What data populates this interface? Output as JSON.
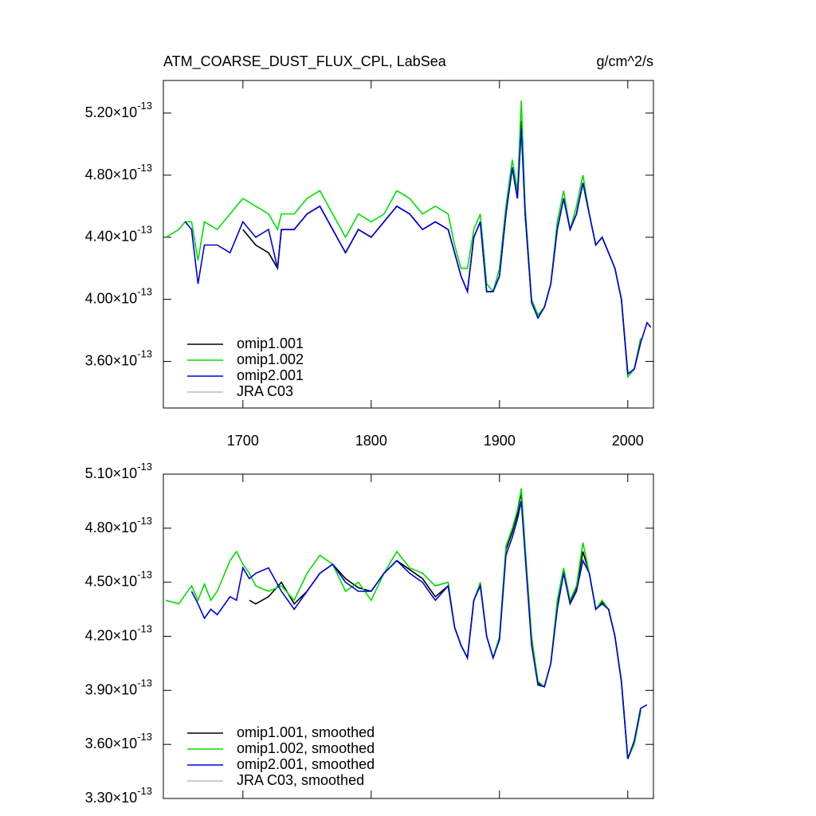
{
  "chart_data": [
    {
      "type": "line",
      "title": "ATM_COARSE_DUST_FLUX_CPL, LabSea",
      "units": "g/cm^2/s",
      "x": [
        1640,
        1650,
        1655,
        1660,
        1665,
        1670,
        1680,
        1690,
        1700,
        1710,
        1720,
        1727,
        1730,
        1740,
        1750,
        1760,
        1770,
        1780,
        1790,
        1800,
        1810,
        1820,
        1830,
        1840,
        1850,
        1860,
        1865,
        1870,
        1875,
        1880,
        1885,
        1890,
        1895,
        1900,
        1905,
        1910,
        1914,
        1917,
        1920,
        1925,
        1930,
        1935,
        1940,
        1945,
        1950,
        1955,
        1960,
        1965,
        1970,
        1975,
        1980,
        1985,
        1990,
        1995,
        2000,
        2005,
        2010,
        2015,
        2018
      ],
      "series": [
        {
          "name": "omip1.001",
          "color": "#000000",
          "values": [
            null,
            null,
            null,
            null,
            null,
            null,
            null,
            null,
            4.45e-13,
            4.35e-13,
            4.3e-13,
            4.2e-13,
            4.45e-13,
            4.45e-13,
            4.55e-13,
            4.6e-13,
            4.45e-13,
            4.3e-13,
            4.45e-13,
            4.4e-13,
            4.5e-13,
            4.6e-13,
            4.55e-13,
            4.45e-13,
            4.5e-13,
            4.45e-13,
            4.3e-13,
            4.15e-13,
            4.05e-13,
            4.4e-13,
            4.5e-13,
            4.05e-13,
            4.05e-13,
            4.15e-13,
            4.55e-13,
            4.85e-13,
            4.65e-13,
            5.15e-13,
            4.55e-13,
            3.98e-13,
            3.88e-13,
            3.95e-13,
            4.1e-13,
            4.45e-13,
            4.65e-13,
            4.45e-13,
            4.55e-13,
            4.75e-13,
            4.55e-13,
            4.35e-13,
            4.4e-13,
            4.3e-13,
            4.2e-13,
            4e-13,
            3.52e-13,
            3.55e-13,
            3.72e-13,
            null,
            null
          ]
        },
        {
          "name": "omip1.002",
          "color": "#00dd00",
          "values": [
            4.4e-13,
            4.45e-13,
            4.5e-13,
            4.5e-13,
            4.25e-13,
            4.5e-13,
            4.45e-13,
            4.55e-13,
            4.65e-13,
            4.6e-13,
            4.55e-13,
            4.45e-13,
            4.55e-13,
            4.55e-13,
            4.65e-13,
            4.7e-13,
            4.55e-13,
            4.4e-13,
            4.55e-13,
            4.5e-13,
            4.55e-13,
            4.7e-13,
            4.65e-13,
            4.55e-13,
            4.6e-13,
            4.55e-13,
            4.35e-13,
            4.2e-13,
            4.2e-13,
            4.45e-13,
            4.55e-13,
            4.1e-13,
            4.05e-13,
            4.2e-13,
            4.6e-13,
            4.9e-13,
            4.7e-13,
            5.28e-13,
            4.6e-13,
            4e-13,
            3.9e-13,
            3.95e-13,
            4.1e-13,
            4.5e-13,
            4.7e-13,
            4.45e-13,
            4.6e-13,
            4.8e-13,
            4.55e-13,
            4.35e-13,
            4.4e-13,
            4.3e-13,
            4.2e-13,
            4e-13,
            3.5e-13,
            3.55e-13,
            3.75e-13,
            null,
            null
          ]
        },
        {
          "name": "omip2.001",
          "color": "#0000dd",
          "values": [
            null,
            null,
            4.5e-13,
            4.45e-13,
            4.1e-13,
            4.35e-13,
            4.35e-13,
            4.3e-13,
            4.5e-13,
            4.4e-13,
            4.45e-13,
            4.2e-13,
            4.45e-13,
            4.45e-13,
            4.55e-13,
            4.6e-13,
            4.45e-13,
            4.3e-13,
            4.45e-13,
            4.4e-13,
            4.5e-13,
            4.6e-13,
            4.55e-13,
            4.45e-13,
            4.5e-13,
            4.45e-13,
            4.3e-13,
            4.15e-13,
            4.05e-13,
            4.4e-13,
            4.5e-13,
            4.05e-13,
            4.05e-13,
            4.15e-13,
            4.55e-13,
            4.85e-13,
            4.65e-13,
            5.1e-13,
            4.55e-13,
            3.98e-13,
            3.88e-13,
            3.95e-13,
            4.1e-13,
            4.45e-13,
            4.65e-13,
            4.45e-13,
            4.55e-13,
            4.75e-13,
            4.55e-13,
            4.35e-13,
            4.4e-13,
            4.3e-13,
            4.2e-13,
            4e-13,
            3.52e-13,
            3.55e-13,
            3.72e-13,
            3.85e-13,
            3.82e-13
          ]
        },
        {
          "name": "JRA C03",
          "color": "#bbbbbb",
          "values": [
            null,
            null,
            null,
            null,
            null,
            null,
            null,
            null,
            null,
            null,
            null,
            null,
            null,
            null,
            null,
            null,
            null,
            null,
            null,
            null,
            null,
            null,
            null,
            null,
            null,
            null,
            null,
            null,
            null,
            null,
            null,
            null,
            null,
            null,
            null,
            null,
            null,
            null,
            null,
            null,
            null,
            null,
            null,
            null,
            null,
            null,
            null,
            null,
            null,
            null,
            null,
            null,
            null,
            null,
            null,
            null,
            null,
            null,
            null
          ]
        }
      ],
      "xlim": [
        1638,
        2020
      ],
      "xticks": [
        1700,
        1800,
        1900,
        2000
      ],
      "xticklabels": true,
      "ylim": [
        3.3e-13,
        5.41e-13
      ],
      "yticks": [
        {
          "value": 3.6e-13,
          "label": "3.60×10^-13"
        },
        {
          "value": 4e-13,
          "label": "4.00×10^-13"
        },
        {
          "value": 4.4e-13,
          "label": "4.40×10^-13"
        },
        {
          "value": 4.8e-13,
          "label": "4.80×10^-13"
        },
        {
          "value": 5.2e-13,
          "label": "5.20×10^-13"
        }
      ],
      "legend": "lower left"
    },
    {
      "type": "line",
      "x": [
        1640,
        1650,
        1660,
        1665,
        1670,
        1675,
        1680,
        1690,
        1695,
        1700,
        1705,
        1710,
        1720,
        1730,
        1740,
        1750,
        1760,
        1770,
        1780,
        1790,
        1800,
        1810,
        1820,
        1830,
        1840,
        1850,
        1860,
        1865,
        1870,
        1875,
        1880,
        1885,
        1890,
        1895,
        1900,
        1905,
        1910,
        1914,
        1917,
        1920,
        1925,
        1930,
        1935,
        1940,
        1945,
        1950,
        1955,
        1960,
        1965,
        1970,
        1975,
        1980,
        1985,
        1990,
        1995,
        2000,
        2005,
        2010,
        2015
      ],
      "series": [
        {
          "name": "omip1.001, smoothed",
          "color": "#000000",
          "values": [
            null,
            null,
            null,
            null,
            null,
            null,
            null,
            null,
            null,
            null,
            4.4e-13,
            4.38e-13,
            4.42e-13,
            4.5e-13,
            4.38e-13,
            4.45e-13,
            4.55e-13,
            4.6e-13,
            4.52e-13,
            4.47e-13,
            4.45e-13,
            4.55e-13,
            4.62e-13,
            4.57e-13,
            4.52e-13,
            4.42e-13,
            4.48e-13,
            4.25e-13,
            4.15e-13,
            4.08e-13,
            4.4e-13,
            4.49e-13,
            4.2e-13,
            4.08e-13,
            4.19e-13,
            4.68e-13,
            4.78e-13,
            4.88e-13,
            5e-13,
            4.68e-13,
            4.17e-13,
            3.94e-13,
            3.92e-13,
            4.05e-13,
            4.37e-13,
            4.56e-13,
            4.39e-13,
            4.47e-13,
            4.67e-13,
            4.55e-13,
            4.35e-13,
            4.39e-13,
            4.35e-13,
            4.2e-13,
            3.95e-13,
            3.52e-13,
            3.61e-13,
            3.79e-13,
            null
          ]
        },
        {
          "name": "omip1.002, smoothed",
          "color": "#00dd00",
          "values": [
            4.4e-13,
            4.38e-13,
            4.48e-13,
            4.4e-13,
            4.49e-13,
            4.4e-13,
            4.45e-13,
            4.62e-13,
            4.67e-13,
            4.6e-13,
            4.55e-13,
            4.48e-13,
            4.45e-13,
            4.48e-13,
            4.4e-13,
            4.55e-13,
            4.65e-13,
            4.6e-13,
            4.45e-13,
            4.5e-13,
            4.4e-13,
            4.55e-13,
            4.67e-13,
            4.58e-13,
            4.55e-13,
            4.48e-13,
            4.5e-13,
            4.25e-13,
            4.15e-13,
            4.08e-13,
            4.4e-13,
            4.5e-13,
            4.2e-13,
            4.08e-13,
            4.2e-13,
            4.7e-13,
            4.8e-13,
            4.9e-13,
            5.02e-13,
            4.7e-13,
            4.2e-13,
            3.95e-13,
            3.92e-13,
            4.05e-13,
            4.4e-13,
            4.58e-13,
            4.4e-13,
            4.48e-13,
            4.72e-13,
            4.55e-13,
            4.35e-13,
            4.4e-13,
            4.35e-13,
            4.2e-13,
            3.95e-13,
            3.52e-13,
            3.6e-13,
            3.78e-13,
            null
          ]
        },
        {
          "name": "omip2.001, smoothed",
          "color": "#0000dd",
          "values": [
            null,
            null,
            4.45e-13,
            4.38e-13,
            4.3e-13,
            4.35e-13,
            4.32e-13,
            4.42e-13,
            4.4e-13,
            4.58e-13,
            4.52e-13,
            4.55e-13,
            4.58e-13,
            4.45e-13,
            4.35e-13,
            4.45e-13,
            4.55e-13,
            4.6e-13,
            4.5e-13,
            4.45e-13,
            4.45e-13,
            4.55e-13,
            4.62e-13,
            4.55e-13,
            4.5e-13,
            4.4e-13,
            4.48e-13,
            4.25e-13,
            4.15e-13,
            4.08e-13,
            4.4e-13,
            4.48e-13,
            4.2e-13,
            4.08e-13,
            4.18e-13,
            4.65e-13,
            4.75e-13,
            4.85e-13,
            4.95e-13,
            4.65e-13,
            4.15e-13,
            3.93e-13,
            3.92e-13,
            4.05e-13,
            4.35e-13,
            4.55e-13,
            4.38e-13,
            4.45e-13,
            4.62e-13,
            4.55e-13,
            4.35e-13,
            4.38e-13,
            4.35e-13,
            4.2e-13,
            3.95e-13,
            3.52e-13,
            3.62e-13,
            3.8e-13,
            3.82e-13
          ]
        },
        {
          "name": "JRA C03, smoothed",
          "color": "#bbbbbb",
          "values": [
            null,
            null,
            null,
            null,
            null,
            null,
            null,
            null,
            null,
            null,
            null,
            null,
            null,
            null,
            null,
            null,
            null,
            null,
            null,
            null,
            null,
            null,
            null,
            null,
            null,
            null,
            null,
            null,
            null,
            null,
            null,
            null,
            null,
            null,
            null,
            null,
            null,
            null,
            null,
            null,
            null,
            null,
            null,
            null,
            null,
            null,
            null,
            null,
            null,
            null,
            null,
            null,
            null,
            null,
            null,
            null,
            null,
            null,
            null
          ]
        }
      ],
      "xlim": [
        1638,
        2020
      ],
      "xticks": [
        1700,
        1800,
        1900,
        2000
      ],
      "xticklabels": false,
      "ylim": [
        3.3e-13,
        5.1e-13
      ],
      "yticks": [
        {
          "value": 3.3e-13,
          "label": "3.30×10^-13"
        },
        {
          "value": 3.6e-13,
          "label": "3.60×10^-13"
        },
        {
          "value": 3.9e-13,
          "label": "3.90×10^-13"
        },
        {
          "value": 4.2e-13,
          "label": "4.20×10^-13"
        },
        {
          "value": 4.5e-13,
          "label": "4.50×10^-13"
        },
        {
          "value": 4.8e-13,
          "label": "4.80×10^-13"
        },
        {
          "value": 5.1e-13,
          "label": "5.10×10^-13"
        }
      ],
      "legend": "lower left"
    }
  ]
}
